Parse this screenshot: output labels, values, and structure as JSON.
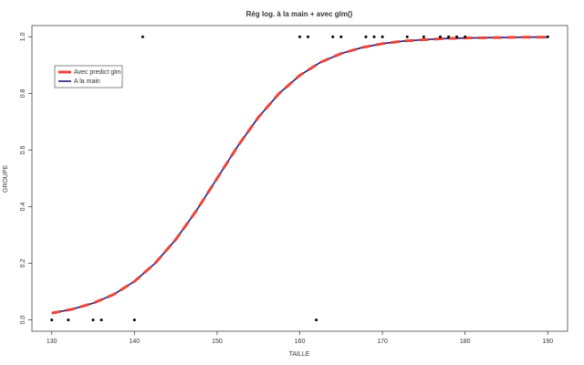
{
  "chart_data": {
    "type": "line",
    "title": "Rég log. à la main + avec glm()",
    "x_label": "TAILLE",
    "y_label": "GROUPE",
    "x": [
      130,
      132.5,
      135,
      137.5,
      140,
      142.5,
      145,
      147.5,
      150,
      152.5,
      155,
      157.5,
      160,
      162.5,
      165,
      167.5,
      170,
      172.5,
      175,
      177.5,
      180,
      182.5,
      185,
      187.5,
      190
    ],
    "series": [
      {
        "name": "A la main",
        "color": "#1c1c7a",
        "values": [
          0.024,
          0.038,
          0.059,
          0.09,
          0.136,
          0.2,
          0.284,
          0.386,
          0.5,
          0.614,
          0.716,
          0.8,
          0.864,
          0.91,
          0.941,
          0.962,
          0.976,
          0.985,
          0.99,
          0.994,
          0.996,
          0.997,
          0.998,
          0.999,
          0.999
        ]
      },
      {
        "name": "Avec predict glm",
        "color": "#e8453c",
        "dashed": true,
        "values": [
          0.024,
          0.038,
          0.059,
          0.09,
          0.136,
          0.2,
          0.284,
          0.386,
          0.5,
          0.614,
          0.716,
          0.8,
          0.864,
          0.91,
          0.941,
          0.962,
          0.976,
          0.985,
          0.99,
          0.994,
          0.996,
          0.997,
          0.998,
          0.999,
          0.999
        ]
      }
    ],
    "points": {
      "color": "#000000",
      "x": [
        130,
        132,
        135,
        136,
        140,
        162,
        141,
        160,
        161,
        164,
        165,
        168,
        169,
        170,
        173,
        175,
        177,
        178,
        179,
        180,
        190
      ],
      "y": [
        0,
        0,
        0,
        0,
        0,
        0,
        1,
        1,
        1,
        1,
        1,
        1,
        1,
        1,
        1,
        1,
        1,
        1,
        1,
        1,
        1
      ]
    },
    "xlim": [
      127.6,
      192.4
    ],
    "ylim": [
      -0.04,
      1.04
    ],
    "xticks": [
      130,
      140,
      150,
      160,
      170,
      180,
      190
    ],
    "yticks": [
      {
        "value": 0,
        "label": "0.0"
      },
      {
        "value": 0.2,
        "label": "0.2"
      },
      {
        "value": 0.4,
        "label": "0.4"
      },
      {
        "value": 0.6,
        "label": "0.6"
      },
      {
        "value": 0.8,
        "label": "0.8"
      },
      {
        "value": 1,
        "label": "1.0"
      }
    ],
    "legend_order": [
      1,
      0
    ],
    "legend": "top-left"
  }
}
